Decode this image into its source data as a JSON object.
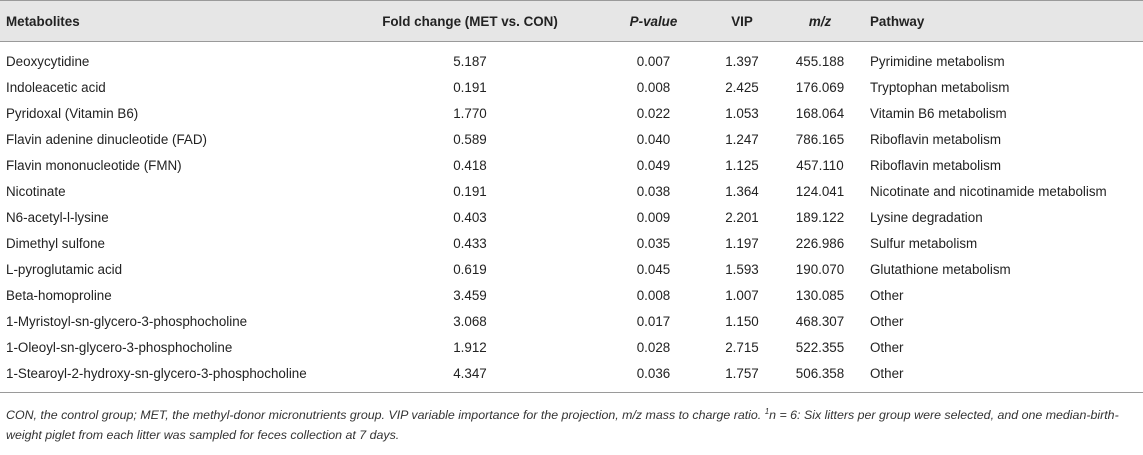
{
  "table": {
    "headers": {
      "metabolites": "Metabolites",
      "fold_change": "Fold change (MET vs. CON)",
      "p_value": "P-value",
      "vip": "VIP",
      "mz": "m/z",
      "pathway": "Pathway"
    },
    "rows": [
      {
        "metabolite": "Deoxycytidine",
        "fold_change": "5.187",
        "p_value": "0.007",
        "vip": "1.397",
        "mz": "455.188",
        "pathway": "Pyrimidine metabolism"
      },
      {
        "metabolite": "Indoleacetic acid",
        "fold_change": "0.191",
        "p_value": "0.008",
        "vip": "2.425",
        "mz": "176.069",
        "pathway": "Tryptophan metabolism"
      },
      {
        "metabolite": "Pyridoxal (Vitamin B6)",
        "fold_change": "1.770",
        "p_value": "0.022",
        "vip": "1.053",
        "mz": "168.064",
        "pathway": "Vitamin B6 metabolism"
      },
      {
        "metabolite": "Flavin adenine dinucleotide (FAD)",
        "fold_change": "0.589",
        "p_value": "0.040",
        "vip": "1.247",
        "mz": "786.165",
        "pathway": "Riboflavin metabolism"
      },
      {
        "metabolite": "Flavin mononucleotide (FMN)",
        "fold_change": "0.418",
        "p_value": "0.049",
        "vip": "1.125",
        "mz": "457.110",
        "pathway": "Riboflavin metabolism"
      },
      {
        "metabolite": "Nicotinate",
        "fold_change": "0.191",
        "p_value": "0.038",
        "vip": "1.364",
        "mz": "124.041",
        "pathway": "Nicotinate and nicotinamide metabolism"
      },
      {
        "metabolite": "N6-acetyl-l-lysine",
        "fold_change": "0.403",
        "p_value": "0.009",
        "vip": "2.201",
        "mz": "189.122",
        "pathway": "Lysine degradation"
      },
      {
        "metabolite": "Dimethyl sulfone",
        "fold_change": "0.433",
        "p_value": "0.035",
        "vip": "1.197",
        "mz": "226.986",
        "pathway": "Sulfur metabolism"
      },
      {
        "metabolite": "L-pyroglutamic acid",
        "fold_change": "0.619",
        "p_value": "0.045",
        "vip": "1.593",
        "mz": "190.070",
        "pathway": "Glutathione metabolism"
      },
      {
        "metabolite": "Beta-homoproline",
        "fold_change": "3.459",
        "p_value": "0.008",
        "vip": "1.007",
        "mz": "130.085",
        "pathway": "Other"
      },
      {
        "metabolite": "1-Myristoyl-sn-glycero-3-phosphocholine",
        "fold_change": "3.068",
        "p_value": "0.017",
        "vip": "1.150",
        "mz": "468.307",
        "pathway": "Other"
      },
      {
        "metabolite": "1-Oleoyl-sn-glycero-3-phosphocholine",
        "fold_change": "1.912",
        "p_value": "0.028",
        "vip": "2.715",
        "mz": "522.355",
        "pathway": "Other"
      },
      {
        "metabolite": "1-Stearoyl-2-hydroxy-sn-glycero-3-phosphocholine",
        "fold_change": "4.347",
        "p_value": "0.036",
        "vip": "1.757",
        "mz": "506.358",
        "pathway": "Other"
      }
    ]
  },
  "footnote": {
    "text_before_sup": "CON, the control group; MET, the methyl-donor micronutrients group. VIP variable importance for the projection, m/z mass to charge ratio. ",
    "sup": "1",
    "text_after_sup": "n = 6: Six litters per group were selected, and one median-birth-weight piglet from each litter was sampled for feces collection at 7 days."
  }
}
